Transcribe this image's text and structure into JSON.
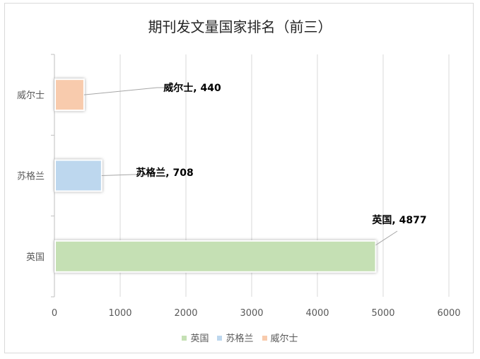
{
  "chart_data": {
    "type": "bar",
    "orientation": "horizontal",
    "title": "期刊发文量国家排名（前三）",
    "categories": [
      "英国",
      "苏格兰",
      "威尔士"
    ],
    "series": [
      {
        "name": "英国",
        "values": [
          4877,
          null,
          null
        ],
        "color": "#c5e0b4"
      },
      {
        "name": "苏格兰",
        "values": [
          null,
          708,
          null
        ],
        "color": "#bdd7ee"
      },
      {
        "name": "威尔士",
        "values": [
          null,
          null,
          440
        ],
        "color": "#f8cbad"
      }
    ],
    "data_labels": [
      "英国, 4877",
      "苏格兰, 708",
      "威尔士, 440"
    ],
    "xlim": [
      0,
      6000
    ],
    "xticks": [
      "0",
      "1000",
      "2000",
      "3000",
      "4000",
      "5000",
      "6000"
    ],
    "grid": true,
    "legend_position": "bottom"
  }
}
